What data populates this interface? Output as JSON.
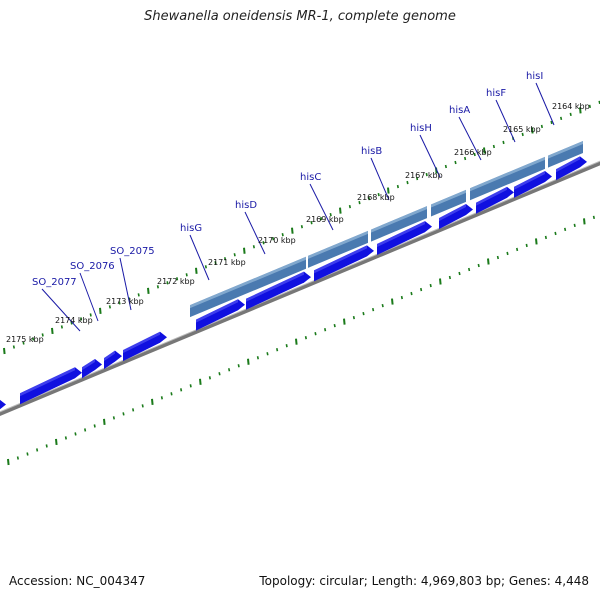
{
  "title": "Shewanella oneidensis MR-1, complete genome",
  "footer": {
    "accession": "Accession: NC_004347",
    "summary": "Topology: circular; Length: 4,969,803 bp; Genes: 4,448"
  },
  "colors": {
    "gene_cds": "#1010e0",
    "gene_cds_dark": "#0a0a90",
    "operon_feature": "#4a7ab0",
    "operon_feature_light": "#8fb4d6",
    "backbone": "#888888",
    "tick": "#1a7a1a",
    "gene_label": "#1a1aa6"
  },
  "ticks": [
    {
      "label": "2164 kbp"
    },
    {
      "label": "2165 kbp"
    },
    {
      "label": "2166 kbp"
    },
    {
      "label": "2167 kbp"
    },
    {
      "label": "2168 kbp"
    },
    {
      "label": "2169 kbp"
    },
    {
      "label": "2170 kbp"
    },
    {
      "label": "2171 kbp"
    },
    {
      "label": "2172 kbp"
    },
    {
      "label": "2173 kbp"
    },
    {
      "label": "2174 kbp"
    },
    {
      "label": "2175 kbp"
    }
  ],
  "gene_labels": [
    {
      "label": "hisI"
    },
    {
      "label": "hisF"
    },
    {
      "label": "hisA"
    },
    {
      "label": "hisH"
    },
    {
      "label": "hisB"
    },
    {
      "label": "hisC"
    },
    {
      "label": "hisD"
    },
    {
      "label": "hisG"
    },
    {
      "label": "SO_2075"
    },
    {
      "label": "SO_2076"
    },
    {
      "label": "SO_2077"
    }
  ]
}
